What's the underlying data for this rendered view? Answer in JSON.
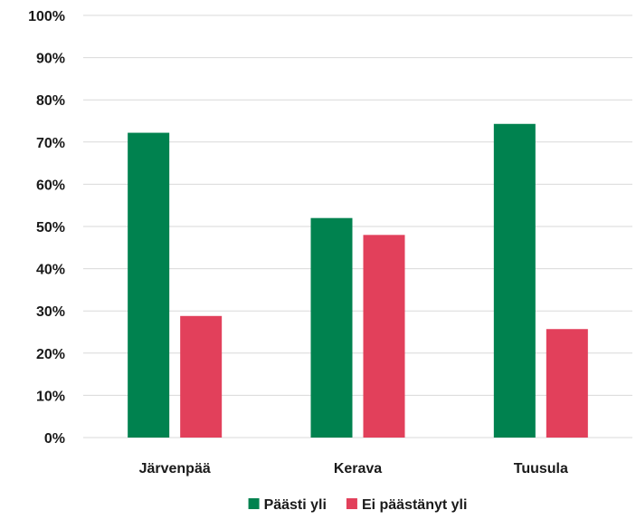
{
  "chart_data": {
    "type": "bar",
    "title": "",
    "xlabel": "",
    "ylabel": "",
    "categories": [
      "Järvenpää",
      "Kerava",
      "Tuusula"
    ],
    "series": [
      {
        "name": "Päästi yli",
        "color": "#00824f",
        "values": [
          72.2,
          52.0,
          74.3
        ]
      },
      {
        "name": "Ei päästänyt yli",
        "color": "#e2405b",
        "values": [
          28.8,
          48.0,
          25.7
        ]
      }
    ],
    "ylim": [
      0,
      100
    ],
    "yticks": [
      "0%",
      "10%",
      "20%",
      "30%",
      "40%",
      "50%",
      "60%",
      "70%",
      "80%",
      "90%",
      "100%"
    ],
    "y_unit": "%",
    "grid": true,
    "legend_position": "bottom"
  }
}
